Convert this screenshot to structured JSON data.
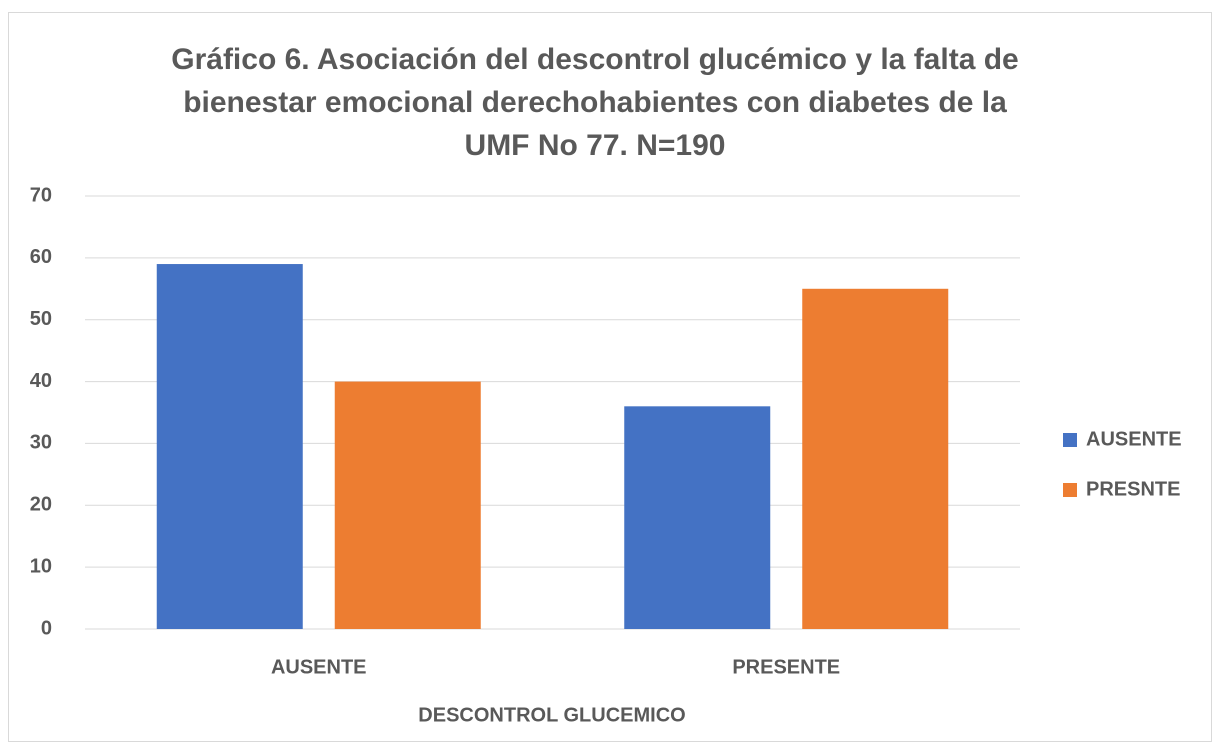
{
  "chart_data": {
    "type": "bar",
    "title": "Gráfico 6. Asociación del descontrol glucémico y la falta de bienestar emocional derechohabientes con diabetes de la UMF No 77. N=190",
    "categories": [
      "AUSENTE",
      "PRESENTE"
    ],
    "series": [
      {
        "name": "AUSENTE",
        "color": "#4472c4",
        "values": [
          59,
          36
        ]
      },
      {
        "name": "PRESNTE",
        "color": "#ed7d31",
        "values": [
          40,
          55
        ]
      }
    ],
    "x_label": "DESCONTROL GLUCEMICO",
    "ylim": [
      0,
      70
    ],
    "yticks": [
      0,
      10,
      20,
      30,
      40,
      50,
      60,
      70
    ],
    "grid": true,
    "legend": "right"
  }
}
